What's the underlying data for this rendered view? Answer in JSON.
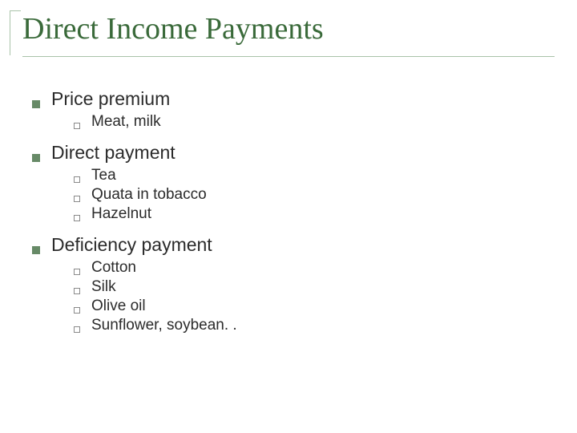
{
  "title": "Direct Income Payments",
  "colors": {
    "title_color": "#3a6a3a",
    "rule_color": "#a9c3a9",
    "bullet_lvl1_fill": "#678a67",
    "bullet_lvl2_border": "#8a8a8a",
    "text_color": "#2b2b2b",
    "background": "#ffffff"
  },
  "typography": {
    "title_font": "Times New Roman",
    "title_fontsize_pt": 28,
    "body_font": "Arial",
    "lvl1_fontsize_pt": 17,
    "lvl2_fontsize_pt": 14
  },
  "items": [
    {
      "label": "Price premium",
      "children": [
        {
          "label": "Meat, milk"
        }
      ]
    },
    {
      "label": "Direct payment",
      "children": [
        {
          "label": "Tea"
        },
        {
          "label": "Quata in tobacco"
        },
        {
          "label": "Hazelnut"
        }
      ]
    },
    {
      "label": "Deficiency payment",
      "children": [
        {
          "label": "Cotton"
        },
        {
          "label": "Silk"
        },
        {
          "label": "Olive oil"
        },
        {
          "label": "Sunflower, soybean. ."
        }
      ]
    }
  ]
}
